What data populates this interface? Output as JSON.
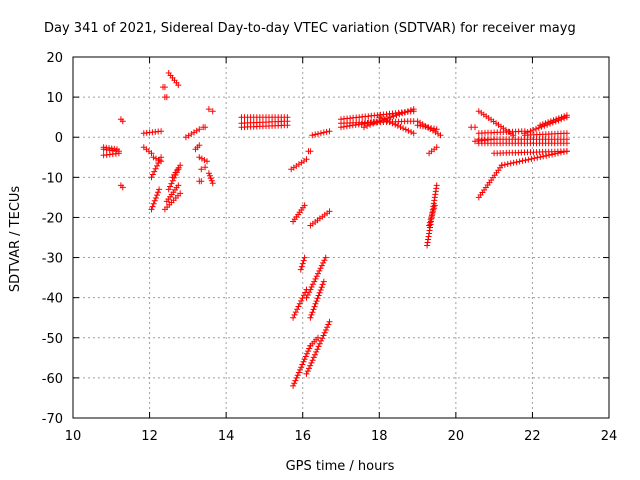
{
  "chart_data": {
    "type": "scatter",
    "title": "Day 341 of 2021, Sidereal Day-to-day VTEC variation (SDTVAR) for receiver mayg",
    "xlabel": "GPS time / hours",
    "ylabel": "SDTVAR / TECUs",
    "xlim": [
      10,
      24
    ],
    "ylim": [
      -70,
      20
    ],
    "xticks": [
      10,
      12,
      14,
      16,
      18,
      20,
      22,
      24
    ],
    "yticks": [
      20,
      10,
      0,
      -10,
      -20,
      -30,
      -40,
      -50,
      -60,
      -70
    ],
    "grid": true,
    "marker": "+",
    "color": "#ff0000",
    "segments": [
      {
        "x0": 10.8,
        "y0": -3.0,
        "x1": 11.2,
        "y1": -3.5
      },
      {
        "x0": 10.8,
        "y0": -4.5,
        "x1": 11.2,
        "y1": -4.0
      },
      {
        "x0": 10.8,
        "y0": -2.5,
        "x1": 11.15,
        "y1": -3.0
      },
      {
        "x0": 11.25,
        "y0": 4.5,
        "x1": 11.3,
        "y1": 4.0
      },
      {
        "x0": 11.25,
        "y0": -12.0,
        "x1": 11.3,
        "y1": -12.5
      },
      {
        "x0": 11.85,
        "y0": 1.0,
        "x1": 12.3,
        "y1": 1.5
      },
      {
        "x0": 11.85,
        "y0": -2.5,
        "x1": 12.05,
        "y1": -4.0
      },
      {
        "x0": 12.05,
        "y0": -18.0,
        "x1": 12.25,
        "y1": -13.0
      },
      {
        "x0": 12.05,
        "y0": -10.0,
        "x1": 12.3,
        "y1": -5.0
      },
      {
        "x0": 12.1,
        "y0": -5.0,
        "x1": 12.3,
        "y1": -6.0
      },
      {
        "x0": 12.5,
        "y0": 16.0,
        "x1": 12.75,
        "y1": 13.0
      },
      {
        "x0": 12.35,
        "y0": 12.5,
        "x1": 12.4,
        "y1": 12.5
      },
      {
        "x0": 12.4,
        "y0": 10.0,
        "x1": 12.45,
        "y1": 10.0
      },
      {
        "x0": 12.4,
        "y0": -18.0,
        "x1": 12.8,
        "y1": -14.0
      },
      {
        "x0": 12.45,
        "y0": -16.0,
        "x1": 12.75,
        "y1": -12.0
      },
      {
        "x0": 12.5,
        "y0": -13.0,
        "x1": 12.75,
        "y1": -8.0
      },
      {
        "x0": 12.6,
        "y0": -10.0,
        "x1": 12.8,
        "y1": -7.0
      },
      {
        "x0": 12.95,
        "y0": 0.0,
        "x1": 13.3,
        "y1": 2.0
      },
      {
        "x0": 13.2,
        "y0": -3.0,
        "x1": 13.3,
        "y1": -2.0
      },
      {
        "x0": 13.3,
        "y0": -5.0,
        "x1": 13.5,
        "y1": -6.0
      },
      {
        "x0": 13.35,
        "y0": -8.0,
        "x1": 13.45,
        "y1": -7.5
      },
      {
        "x0": 13.4,
        "y0": 2.5,
        "x1": 13.45,
        "y1": 2.5
      },
      {
        "x0": 13.3,
        "y0": -11.0,
        "x1": 13.35,
        "y1": -11.0
      },
      {
        "x0": 13.55,
        "y0": 7.0,
        "x1": 13.65,
        "y1": 6.5
      },
      {
        "x0": 13.55,
        "y0": -9.0,
        "x1": 13.65,
        "y1": -11.5
      },
      {
        "x0": 14.4,
        "y0": 5.0,
        "x1": 15.6,
        "y1": 5.0
      },
      {
        "x0": 14.4,
        "y0": 3.5,
        "x1": 15.6,
        "y1": 4.0
      },
      {
        "x0": 14.4,
        "y0": 2.5,
        "x1": 15.6,
        "y1": 3.0
      },
      {
        "x0": 15.7,
        "y0": -8.0,
        "x1": 16.1,
        "y1": -5.5
      },
      {
        "x0": 16.15,
        "y0": -3.5,
        "x1": 16.2,
        "y1": -3.5
      },
      {
        "x0": 15.75,
        "y0": -21.0,
        "x1": 16.05,
        "y1": -17.0
      },
      {
        "x0": 15.75,
        "y0": -45.0,
        "x1": 16.1,
        "y1": -38.0
      },
      {
        "x0": 16.1,
        "y0": -40.0,
        "x1": 16.6,
        "y1": -30.0
      },
      {
        "x0": 16.2,
        "y0": -22.0,
        "x1": 16.7,
        "y1": -18.5
      },
      {
        "x0": 15.95,
        "y0": -33.0,
        "x1": 16.05,
        "y1": -30.0
      },
      {
        "x0": 15.75,
        "y0": -62.0,
        "x1": 16.2,
        "y1": -52.0
      },
      {
        "x0": 16.1,
        "y0": -59.0,
        "x1": 16.7,
        "y1": -46.0
      },
      {
        "x0": 16.2,
        "y0": -52.0,
        "x1": 16.4,
        "y1": -50.0
      },
      {
        "x0": 16.2,
        "y0": -45.0,
        "x1": 16.55,
        "y1": -36.0
      },
      {
        "x0": 16.25,
        "y0": 0.5,
        "x1": 16.7,
        "y1": 1.5
      },
      {
        "x0": 17.0,
        "y0": 4.5,
        "x1": 18.9,
        "y1": 6.5
      },
      {
        "x0": 17.0,
        "y0": 3.5,
        "x1": 18.9,
        "y1": 4.0
      },
      {
        "x0": 17.0,
        "y0": 2.5,
        "x1": 18.0,
        "y1": 4.0
      },
      {
        "x0": 17.6,
        "y0": 2.5,
        "x1": 18.0,
        "y1": 4.0
      },
      {
        "x0": 18.0,
        "y0": 5.0,
        "x1": 18.9,
        "y1": 1.0
      },
      {
        "x0": 18.0,
        "y0": 4.0,
        "x1": 18.9,
        "y1": 7.0
      },
      {
        "x0": 19.0,
        "y0": 4.0,
        "x1": 19.6,
        "y1": 0.5
      },
      {
        "x0": 19.0,
        "y0": 3.0,
        "x1": 19.5,
        "y1": 2.0
      },
      {
        "x0": 19.3,
        "y0": -4.0,
        "x1": 19.5,
        "y1": -2.5
      },
      {
        "x0": 19.25,
        "y0": -27.0,
        "x1": 19.5,
        "y1": -12.0
      },
      {
        "x0": 19.3,
        "y0": -22.0,
        "x1": 19.45,
        "y1": -17.0
      },
      {
        "x0": 20.4,
        "y0": 2.5,
        "x1": 20.5,
        "y1": 2.5
      },
      {
        "x0": 20.5,
        "y0": -1.0,
        "x1": 21.0,
        "y1": -0.5
      },
      {
        "x0": 20.6,
        "y0": 6.5,
        "x1": 21.5,
        "y1": 0.5
      },
      {
        "x0": 20.6,
        "y0": 1.0,
        "x1": 21.8,
        "y1": 1.5
      },
      {
        "x0": 20.6,
        "y0": -0.5,
        "x1": 22.9,
        "y1": -0.5
      },
      {
        "x0": 20.6,
        "y0": -1.5,
        "x1": 22.9,
        "y1": -1.5
      },
      {
        "x0": 20.6,
        "y0": -15.0,
        "x1": 21.2,
        "y1": -7.0
      },
      {
        "x0": 21.2,
        "y0": -7.0,
        "x1": 22.9,
        "y1": -3.5
      },
      {
        "x0": 21.0,
        "y0": -4.0,
        "x1": 22.9,
        "y1": -3.5
      },
      {
        "x0": 21.8,
        "y0": 1.0,
        "x1": 22.9,
        "y1": 5.0
      },
      {
        "x0": 21.8,
        "y0": 0.5,
        "x1": 22.9,
        "y1": 1.0
      },
      {
        "x0": 22.2,
        "y0": 3.0,
        "x1": 22.9,
        "y1": 5.5
      }
    ]
  }
}
